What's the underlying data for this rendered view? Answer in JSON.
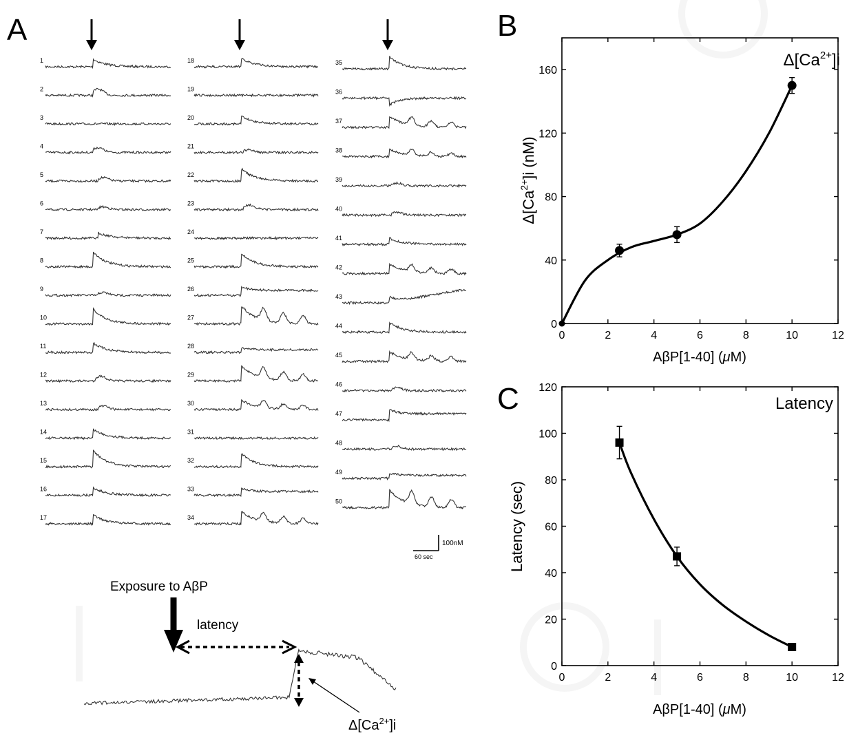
{
  "panels": {
    "a": "A",
    "b": "B",
    "c": "C"
  },
  "panel_a": {
    "columns": [
      {
        "traces": [
          {
            "label": "1",
            "onset": 0.38,
            "amp": 11,
            "shape": "spike"
          },
          {
            "label": "2",
            "onset": 0.38,
            "amp": 9,
            "shape": "bump"
          },
          {
            "label": "3",
            "onset": 0.38,
            "amp": 0,
            "shape": "flat"
          },
          {
            "label": "4",
            "onset": 0.38,
            "amp": 7,
            "shape": "bump"
          },
          {
            "label": "5",
            "onset": 0.42,
            "amp": 5,
            "shape": "bump"
          },
          {
            "label": "6",
            "onset": 0.42,
            "amp": 4,
            "shape": "bump"
          },
          {
            "label": "7",
            "onset": 0.42,
            "amp": 8,
            "shape": "spike"
          },
          {
            "label": "8",
            "onset": 0.38,
            "amp": 22,
            "shape": "spike"
          },
          {
            "label": "9",
            "onset": 0.42,
            "amp": 4,
            "shape": "bump"
          },
          {
            "label": "10",
            "onset": 0.38,
            "amp": 22,
            "shape": "spike"
          },
          {
            "label": "11",
            "onset": 0.38,
            "amp": 14,
            "shape": "spike"
          },
          {
            "label": "12",
            "onset": 0.4,
            "amp": 7,
            "shape": "bump"
          },
          {
            "label": "13",
            "onset": 0.42,
            "amp": 5,
            "shape": "bump"
          },
          {
            "label": "14",
            "onset": 0.38,
            "amp": 13,
            "shape": "spike"
          },
          {
            "label": "15",
            "onset": 0.38,
            "amp": 24,
            "shape": "spike"
          },
          {
            "label": "16",
            "onset": 0.38,
            "amp": 11,
            "shape": "spike"
          },
          {
            "label": "17",
            "onset": 0.38,
            "amp": 13,
            "shape": "spike"
          }
        ]
      },
      {
        "traces": [
          {
            "label": "18",
            "onset": 0.38,
            "amp": 13,
            "shape": "spike"
          },
          {
            "label": "19",
            "onset": 0.4,
            "amp": 0,
            "shape": "flat"
          },
          {
            "label": "20",
            "onset": 0.38,
            "amp": 11,
            "shape": "spike"
          },
          {
            "label": "21",
            "onset": 0.4,
            "amp": 4,
            "shape": "bump"
          },
          {
            "label": "22",
            "onset": 0.38,
            "amp": 18,
            "shape": "spike"
          },
          {
            "label": "23",
            "onset": 0.4,
            "amp": 7,
            "shape": "bump"
          },
          {
            "label": "24",
            "onset": 0.4,
            "amp": 0,
            "shape": "flat"
          },
          {
            "label": "25",
            "onset": 0.38,
            "amp": 20,
            "shape": "spike"
          },
          {
            "label": "26",
            "onset": 0.38,
            "amp": 13,
            "shape": "step"
          },
          {
            "label": "27",
            "onset": 0.38,
            "amp": 26,
            "shape": "burst"
          },
          {
            "label": "28",
            "onset": 0.38,
            "amp": 7,
            "shape": "step"
          },
          {
            "label": "29",
            "onset": 0.38,
            "amp": 22,
            "shape": "burst"
          },
          {
            "label": "30",
            "onset": 0.38,
            "amp": 14,
            "shape": "burst"
          },
          {
            "label": "31",
            "onset": 0.4,
            "amp": 0,
            "shape": "flat"
          },
          {
            "label": "32",
            "onset": 0.38,
            "amp": 20,
            "shape": "spike"
          },
          {
            "label": "33",
            "onset": 0.38,
            "amp": 10,
            "shape": "step"
          },
          {
            "label": "34",
            "onset": 0.38,
            "amp": 18,
            "shape": "burst"
          }
        ]
      },
      {
        "traces": [
          {
            "label": "35",
            "onset": 0.38,
            "amp": 18,
            "shape": "spike"
          },
          {
            "label": "36",
            "onset": 0.38,
            "amp": -10,
            "shape": "dip"
          },
          {
            "label": "37",
            "onset": 0.38,
            "amp": 16,
            "shape": "burst"
          },
          {
            "label": "38",
            "onset": 0.38,
            "amp": 11,
            "shape": "burst"
          },
          {
            "label": "39",
            "onset": 0.4,
            "amp": 4,
            "shape": "bump"
          },
          {
            "label": "40",
            "onset": 0.4,
            "amp": 4,
            "shape": "bump"
          },
          {
            "label": "41",
            "onset": 0.38,
            "amp": 9,
            "shape": "spike"
          },
          {
            "label": "42",
            "onset": 0.38,
            "amp": 14,
            "shape": "burst"
          },
          {
            "label": "43",
            "onset": 0.38,
            "amp": 20,
            "shape": "rise"
          },
          {
            "label": "44",
            "onset": 0.38,
            "amp": 14,
            "shape": "spike"
          },
          {
            "label": "45",
            "onset": 0.38,
            "amp": 14,
            "shape": "burst"
          },
          {
            "label": "46",
            "onset": 0.4,
            "amp": 4,
            "shape": "bump"
          },
          {
            "label": "47",
            "onset": 0.38,
            "amp": 16,
            "shape": "step"
          },
          {
            "label": "48",
            "onset": 0.4,
            "amp": 4,
            "shape": "bump"
          },
          {
            "label": "49",
            "onset": 0.38,
            "amp": 8,
            "shape": "step"
          },
          {
            "label": "50",
            "onset": 0.38,
            "amp": 26,
            "shape": "burst"
          }
        ]
      }
    ],
    "scale_bar": {
      "vertical_label": "100nM",
      "horizontal_label": "60 sec"
    }
  },
  "schematic": {
    "exposure_label": "Exposure to AβP",
    "latency_label": "latency",
    "delta_prefix": "Δ[Ca",
    "delta_sup": "2+",
    "delta_suffix": "]i"
  },
  "colors": {
    "ink": "#000000",
    "trace": "#333333",
    "watermark": "#ececec"
  },
  "chart_data": [
    {
      "type": "line",
      "panel": "B",
      "title_prefix": "Δ[Ca",
      "title_sup": "2+",
      "title_suffix": "]i",
      "ylabel_prefix": "Δ[Ca",
      "ylabel_sup": "2+",
      "ylabel_suffix": "]i (nM)",
      "xlabel_main": "AβP[1-40] (",
      "xlabel_unit": "μ",
      "xlabel_end": "M)",
      "x": [
        0,
        2.5,
        5,
        10
      ],
      "y": [
        0,
        46,
        56,
        150
      ],
      "err": [
        0,
        4,
        5,
        5
      ],
      "marker": "circle",
      "curve": [
        [
          0,
          0
        ],
        [
          1,
          27
        ],
        [
          2,
          40
        ],
        [
          3,
          48
        ],
        [
          4,
          52
        ],
        [
          5,
          56
        ],
        [
          6,
          63
        ],
        [
          7,
          77
        ],
        [
          8,
          96
        ],
        [
          9,
          120
        ],
        [
          10,
          150
        ]
      ],
      "xlim": [
        0,
        12
      ],
      "ylim": [
        0,
        180
      ],
      "xticks": [
        0,
        2,
        4,
        6,
        8,
        10,
        12
      ],
      "yticks": [
        0,
        40,
        80,
        120,
        160
      ]
    },
    {
      "type": "line",
      "panel": "C",
      "title": "Latency",
      "ylabel": "Latency (sec)",
      "xlabel_main": "AβP[1-40] (",
      "xlabel_unit": "μ",
      "xlabel_end": "M)",
      "x": [
        2.5,
        5,
        10
      ],
      "y": [
        96,
        47,
        8
      ],
      "err": [
        7,
        4,
        0
      ],
      "marker": "square",
      "curve": [
        [
          2.5,
          96
        ],
        [
          3,
          83
        ],
        [
          4,
          63
        ],
        [
          5,
          47
        ],
        [
          6,
          35
        ],
        [
          7,
          26
        ],
        [
          8,
          19
        ],
        [
          9,
          13
        ],
        [
          10,
          8
        ]
      ],
      "xlim": [
        0,
        12
      ],
      "ylim": [
        0,
        120
      ],
      "xticks": [
        0,
        2,
        4,
        6,
        8,
        10,
        12
      ],
      "yticks": [
        0,
        20,
        40,
        60,
        80,
        100,
        120
      ]
    }
  ]
}
